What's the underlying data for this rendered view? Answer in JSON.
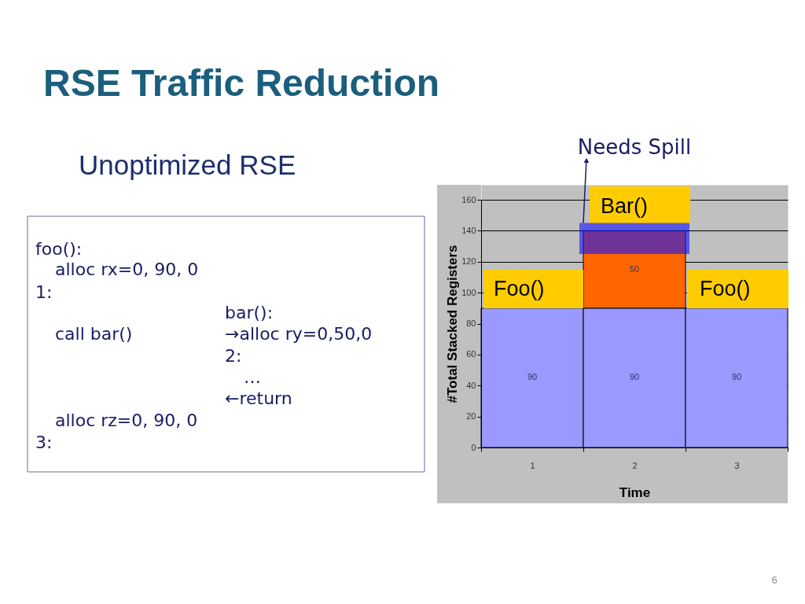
{
  "chart_data": {
    "type": "bar",
    "title": "RSE Traffic Reduction",
    "subtitle": "Unoptimized RSE",
    "xlabel": "Time",
    "ylabel": "#Total Stacked Registers",
    "categories": [
      "1",
      "2",
      "3"
    ],
    "stacked": true,
    "series": [
      {
        "color": "#9999ff",
        "values": [
          90,
          90,
          90
        ]
      },
      {
        "color": "#ff6600",
        "values": [
          null,
          50,
          null
        ]
      }
    ],
    "ylim": [
      0,
      160
    ],
    "yticks": [
      0,
      20,
      40,
      60,
      80,
      100,
      120,
      140,
      160
    ],
    "grid": "y",
    "data_labels": true,
    "legend": false,
    "bands": [
      {
        "axis": "y",
        "from": 125,
        "to": 145,
        "label": "Needs Spill",
        "color": "#1010ff"
      }
    ],
    "annotations": [
      "foo():",
      "alloc rx=0, 90, 0",
      "1:",
      "bar():",
      "call bar()",
      "→alloc ry=0,50,0",
      "2:",
      "…",
      "←return",
      "alloc rz=0, 90, 0",
      "3:",
      "Foo()",
      "Bar()",
      "Foo()",
      "6"
    ]
  }
}
